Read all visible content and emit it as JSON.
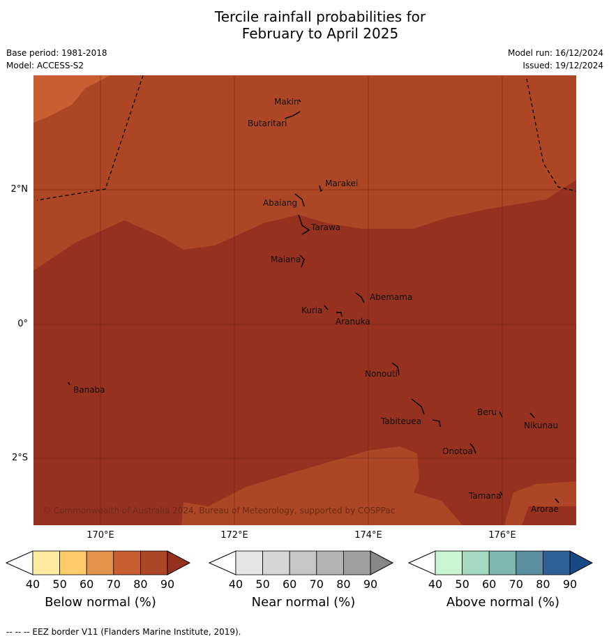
{
  "title_line1": "Tercile rainfall probabilities for",
  "title_line2": "February to April 2025",
  "base_period": "Base period: 1981-2018",
  "model": "Model: ACCESS-S2",
  "model_run": "Model run: 16/12/2024",
  "issued": "Issued: 19/12/2024",
  "lat_labels": [
    "2°N",
    "0°",
    "2°S"
  ],
  "lon_labels": [
    "170°E",
    "172°E",
    "174°E",
    "176°E"
  ],
  "places": {
    "makin": "Makin",
    "butaritari": "Butaritari",
    "marakei": "Marakei",
    "abaiang": "Abaiang",
    "tarawa": "Tarawa",
    "maiana": "Maiana",
    "abemama": "Abemama",
    "kuria": "Kuria",
    "aranuka": "Aranuka",
    "nonouti": "Nonouti",
    "banaba": "Banaba",
    "beru": "Beru",
    "nikunau": "Nikunau",
    "tabiteuea": "Tabiteuea",
    "onotoa": "Onotoa",
    "tamana": "Tamana",
    "arorae": "Arorae"
  },
  "copyright": "© Commonwealth of Australia 2024, Bureau of Meteorology, supported by COSPPac",
  "colorbars": [
    {
      "title": "Below normal (%)",
      "ticks": [
        "40",
        "50",
        "60",
        "70",
        "80",
        "90"
      ],
      "colors": [
        "#ffffff",
        "#feeaa0",
        "#fdcb6a",
        "#e1934a",
        "#c95e33",
        "#ad4625",
        "#96301f"
      ]
    },
    {
      "title": "Near normal (%)",
      "ticks": [
        "40",
        "50",
        "60",
        "70",
        "80",
        "90"
      ],
      "colors": [
        "#ffffff",
        "#e6e6e6",
        "#d6d6d6",
        "#c6c6c6",
        "#b3b3b3",
        "#9f9f9f",
        "#888888"
      ]
    },
    {
      "title": "Above normal (%)",
      "ticks": [
        "40",
        "50",
        "60",
        "70",
        "80",
        "90"
      ],
      "colors": [
        "#ffffff",
        "#c9f5d2",
        "#a3d9be",
        "#7fb6b0",
        "#5b8fa0",
        "#2e5f96",
        "#174a85"
      ]
    }
  ],
  "map_colors": {
    "zone_70_80": "#c95e33",
    "zone_80_90": "#ad4625",
    "zone_90_plus": "#96301f"
  },
  "footer": "--  --  -- EEZ border V11 (Flanders Marine Institute, 2019)."
}
